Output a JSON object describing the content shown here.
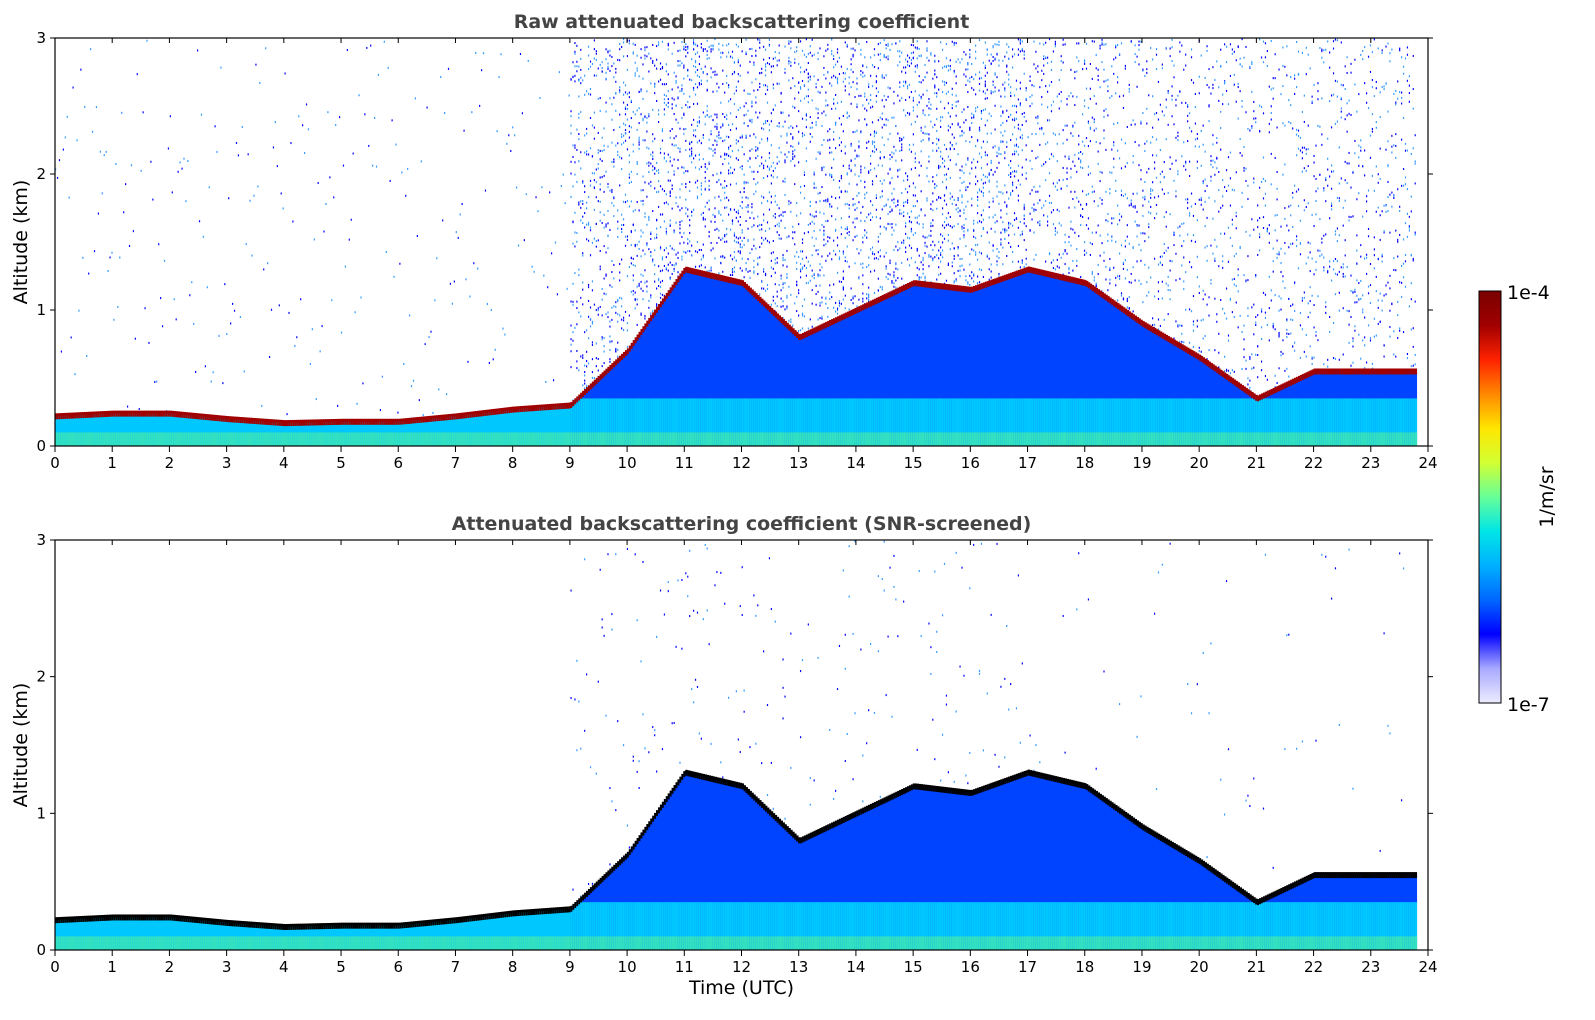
{
  "chart_data": [
    {
      "type": "heatmap",
      "title": "Raw attenuated backscattering coefficient",
      "xlabel": "",
      "ylabel": "Altitude (km)",
      "xlim": [
        0,
        24
      ],
      "ylim": [
        0,
        3
      ],
      "xticks": [
        "0",
        "1",
        "2",
        "3",
        "4",
        "5",
        "6",
        "7",
        "8",
        "9",
        "10",
        "11",
        "12",
        "13",
        "14",
        "15",
        "16",
        "17",
        "18",
        "19",
        "20",
        "21",
        "22",
        "23",
        "24"
      ],
      "yticks": [
        "0",
        "1",
        "2",
        "3"
      ],
      "layer_top_km": {
        "x": [
          0,
          1,
          2,
          3,
          4,
          5,
          6,
          7,
          8,
          9,
          10,
          11,
          12,
          13,
          14,
          15,
          16,
          17,
          18,
          19,
          20,
          21,
          22,
          23,
          23.8
        ],
        "y": [
          0.22,
          0.24,
          0.24,
          0.2,
          0.17,
          0.18,
          0.18,
          0.22,
          0.27,
          0.3,
          0.7,
          1.3,
          1.2,
          0.8,
          1.0,
          1.2,
          1.15,
          1.3,
          1.2,
          0.9,
          0.65,
          0.35,
          0.55,
          0.55,
          0.55
        ]
      }
    },
    {
      "type": "heatmap",
      "title": "Attenuated backscattering coefficient (SNR-screened)",
      "xlabel": "Time (UTC)",
      "ylabel": "Altitude (km)",
      "xlim": [
        0,
        24
      ],
      "ylim": [
        0,
        3
      ],
      "xticks": [
        "0",
        "1",
        "2",
        "3",
        "4",
        "5",
        "6",
        "7",
        "8",
        "9",
        "10",
        "11",
        "12",
        "13",
        "14",
        "15",
        "16",
        "17",
        "18",
        "19",
        "20",
        "21",
        "22",
        "23",
        "24"
      ],
      "yticks": [
        "0",
        "1",
        "2",
        "3"
      ],
      "layer_top_km": {
        "x": [
          0,
          1,
          2,
          3,
          4,
          5,
          6,
          7,
          8,
          9,
          10,
          11,
          12,
          13,
          14,
          15,
          16,
          17,
          18,
          19,
          20,
          21,
          22,
          23,
          23.8
        ],
        "y": [
          0.22,
          0.24,
          0.24,
          0.2,
          0.17,
          0.18,
          0.18,
          0.22,
          0.27,
          0.3,
          0.7,
          1.3,
          1.2,
          0.8,
          1.0,
          1.2,
          1.15,
          1.3,
          1.2,
          0.9,
          0.65,
          0.35,
          0.55,
          0.55,
          0.55
        ]
      }
    }
  ],
  "colorbar": {
    "label": "1/m/sr",
    "min_label": "1e-7",
    "max_label": "1e-4",
    "scale": "log",
    "colors": [
      "#ececff",
      "#aaaaff",
      "#0000ff",
      "#0066ff",
      "#00b0ff",
      "#00e6e6",
      "#66ff99",
      "#d2ff33",
      "#ffe600",
      "#ff8800",
      "#ff2200",
      "#a00000",
      "#7a0000"
    ]
  }
}
